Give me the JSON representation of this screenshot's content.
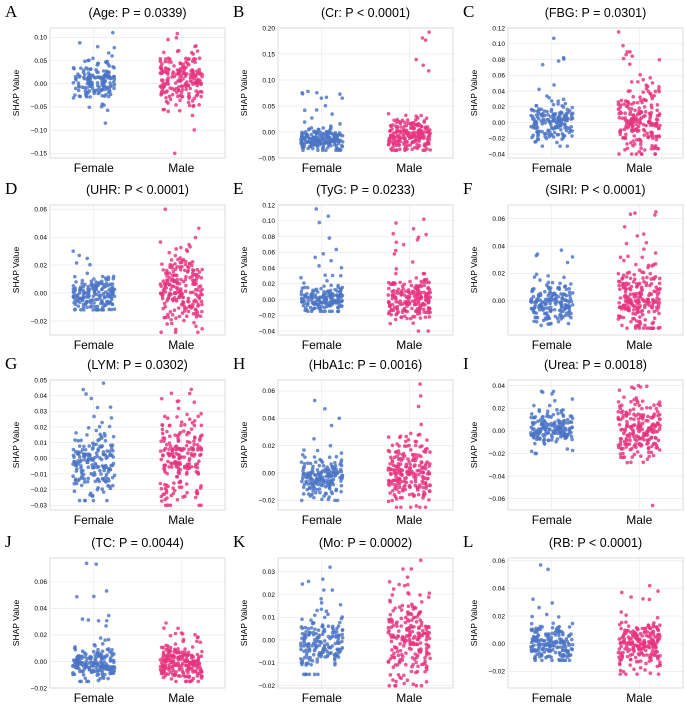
{
  "figure": {
    "colors": {
      "female": "#4a74c4",
      "male": "#e6337f"
    },
    "y_axis_label": "SHAP Value"
  },
  "chart_data": [
    {
      "type": "scatter",
      "letter": "A",
      "title": "(Age: P = 0.0339)",
      "xlabel": "",
      "ylabel": "SHAP Value",
      "categories": [
        "Female",
        "Male"
      ],
      "ylim": [
        -0.16,
        0.12
      ],
      "yticks": [
        0.1,
        0.05,
        0.0,
        -0.05,
        -0.1,
        -0.15
      ],
      "ytick_labels": [
        "0.10",
        "0.05",
        "0.00",
        "−0.05",
        "−0.10",
        "−0.15"
      ],
      "series": [
        {
          "name": "Female",
          "n": 160,
          "center": 0.005,
          "spread": 0.022,
          "min": -0.085,
          "max": 0.11
        },
        {
          "name": "Male",
          "n": 200,
          "center": 0.005,
          "spread": 0.032,
          "min": -0.15,
          "max": 0.108
        }
      ]
    },
    {
      "type": "scatter",
      "letter": "B",
      "title": "(Cr: P < 0.0001)",
      "xlabel": "",
      "ylabel": "SHAP Value",
      "categories": [
        "Female",
        "Male"
      ],
      "ylim": [
        -0.05,
        0.2
      ],
      "yticks": [
        0.2,
        0.15,
        0.1,
        0.05,
        0.0,
        -0.05
      ],
      "ytick_labels": [
        "0.20",
        "0.15",
        "0.10",
        "0.05",
        "0.00",
        "−0.05"
      ],
      "series": [
        {
          "name": "Female",
          "n": 190,
          "center": -0.015,
          "spread": 0.01,
          "min": -0.035,
          "max": 0.078
        },
        {
          "name": "Male",
          "n": 200,
          "center": -0.005,
          "spread": 0.018,
          "min": -0.035,
          "max": 0.192
        }
      ]
    },
    {
      "type": "scatter",
      "letter": "C",
      "title": "(FBG: P = 0.0301)",
      "xlabel": "",
      "ylabel": "SHAP Value",
      "categories": [
        "Female",
        "Male"
      ],
      "ylim": [
        -0.045,
        0.12
      ],
      "yticks": [
        0.12,
        0.1,
        0.08,
        0.06,
        0.04,
        0.02,
        0.0,
        -0.02,
        -0.04
      ],
      "ytick_labels": [
        "0.12",
        "0.10",
        "0.08",
        "0.06",
        "0.04",
        "0.02",
        "0.00",
        "−0.02",
        "−0.04"
      ],
      "series": [
        {
          "name": "Female",
          "n": 180,
          "center": 0.0,
          "spread": 0.013,
          "min": -0.03,
          "max": 0.107
        },
        {
          "name": "Male",
          "n": 210,
          "center": 0.0,
          "spread": 0.022,
          "min": -0.04,
          "max": 0.115
        }
      ]
    },
    {
      "type": "scatter",
      "letter": "D",
      "title": "(UHR: P < 0.0001)",
      "xlabel": "",
      "ylabel": "SHAP Value",
      "categories": [
        "Female",
        "Male"
      ],
      "ylim": [
        -0.03,
        0.063
      ],
      "yticks": [
        0.06,
        0.04,
        0.02,
        0.0,
        -0.02
      ],
      "ytick_labels": [
        "0.06",
        "0.04",
        "0.02",
        "0.00",
        "−0.02"
      ],
      "series": [
        {
          "name": "Female",
          "n": 180,
          "center": -0.002,
          "spread": 0.007,
          "min": -0.012,
          "max": 0.03
        },
        {
          "name": "Male",
          "n": 220,
          "center": 0.002,
          "spread": 0.013,
          "min": -0.028,
          "max": 0.06
        }
      ]
    },
    {
      "type": "scatter",
      "letter": "E",
      "title": "(TyG: P = 0.0233)",
      "xlabel": "",
      "ylabel": "SHAP Value",
      "categories": [
        "Female",
        "Male"
      ],
      "ylim": [
        -0.045,
        0.12
      ],
      "yticks": [
        0.12,
        0.1,
        0.08,
        0.06,
        0.04,
        0.02,
        0.0,
        -0.02,
        -0.04
      ],
      "ytick_labels": [
        "0.12",
        "0.10",
        "0.08",
        "0.06",
        "0.04",
        "0.02",
        "0.00",
        "−0.02",
        "−0.04"
      ],
      "series": [
        {
          "name": "Female",
          "n": 180,
          "center": 0.0,
          "spread": 0.01,
          "min": -0.015,
          "max": 0.115
        },
        {
          "name": "Male",
          "n": 210,
          "center": 0.0,
          "spread": 0.014,
          "min": -0.04,
          "max": 0.102
        }
      ]
    },
    {
      "type": "scatter",
      "letter": "F",
      "title": "(SIRI: P < 0.0001)",
      "xlabel": "",
      "ylabel": "SHAP Value",
      "categories": [
        "Female",
        "Male"
      ],
      "ylim": [
        -0.025,
        0.07
      ],
      "yticks": [
        0.06,
        0.04,
        0.02,
        0.0
      ],
      "ytick_labels": [
        "0.06",
        "0.04",
        "0.02",
        "0.00"
      ],
      "series": [
        {
          "name": "Female",
          "n": 180,
          "center": -0.003,
          "spread": 0.008,
          "min": -0.018,
          "max": 0.037
        },
        {
          "name": "Male",
          "n": 220,
          "center": 0.0,
          "spread": 0.012,
          "min": -0.02,
          "max": 0.065
        }
      ]
    },
    {
      "type": "scatter",
      "letter": "G",
      "title": "(LYM: P = 0.0302)",
      "xlabel": "",
      "ylabel": "SHAP Value",
      "categories": [
        "Female",
        "Male"
      ],
      "ylim": [
        -0.033,
        0.05
      ],
      "yticks": [
        0.05,
        0.04,
        0.03,
        0.02,
        0.01,
        0.0,
        -0.01,
        -0.02,
        -0.03
      ],
      "ytick_labels": [
        "0.05",
        "0.04",
        "0.03",
        "0.02",
        "0.01",
        "0.00",
        "−0.01",
        "−0.02",
        "−0.03"
      ],
      "series": [
        {
          "name": "Female",
          "n": 190,
          "center": -0.002,
          "spread": 0.012,
          "min": -0.027,
          "max": 0.048
        },
        {
          "name": "Male",
          "n": 210,
          "center": 0.0,
          "spread": 0.013,
          "min": -0.03,
          "max": 0.044
        }
      ]
    },
    {
      "type": "scatter",
      "letter": "H",
      "title": "(HbA1c: P = 0.0016)",
      "xlabel": "",
      "ylabel": "SHAP Value",
      "categories": [
        "Female",
        "Male"
      ],
      "ylim": [
        -0.027,
        0.068
      ],
      "yticks": [
        0.06,
        0.04,
        0.02,
        0.0,
        -0.02
      ],
      "ytick_labels": [
        "0.06",
        "0.04",
        "0.02",
        "0.00",
        "−0.02"
      ],
      "series": [
        {
          "name": "Female",
          "n": 180,
          "center": -0.003,
          "spread": 0.008,
          "min": -0.02,
          "max": 0.053
        },
        {
          "name": "Male",
          "n": 220,
          "center": 0.0,
          "spread": 0.013,
          "min": -0.025,
          "max": 0.065
        }
      ]
    },
    {
      "type": "scatter",
      "letter": "I",
      "title": "(Urea: P = 0.0018)",
      "xlabel": "",
      "ylabel": "SHAP Value",
      "categories": [
        "Female",
        "Male"
      ],
      "ylim": [
        -0.07,
        0.045
      ],
      "yticks": [
        0.04,
        0.02,
        0.0,
        -0.02,
        -0.04,
        -0.06
      ],
      "ytick_labels": [
        "0.04",
        "0.02",
        "0.00",
        "−0.02",
        "−0.04",
        "−0.06"
      ],
      "series": [
        {
          "name": "Female",
          "n": 180,
          "center": 0.002,
          "spread": 0.008,
          "min": -0.02,
          "max": 0.035
        },
        {
          "name": "Male",
          "n": 210,
          "center": 0.002,
          "spread": 0.014,
          "min": -0.066,
          "max": 0.04
        }
      ]
    },
    {
      "type": "scatter",
      "letter": "J",
      "title": "(TC: P = 0.0044)",
      "xlabel": "",
      "ylabel": "SHAP Value",
      "categories": [
        "Female",
        "Male"
      ],
      "ylim": [
        -0.02,
        0.078
      ],
      "yticks": [
        0.06,
        0.04,
        0.02,
        0.0,
        -0.02
      ],
      "ytick_labels": [
        "0.06",
        "0.04",
        "0.02",
        "0.00",
        "−0.02"
      ],
      "series": [
        {
          "name": "Female",
          "n": 190,
          "center": -0.001,
          "spread": 0.006,
          "min": -0.015,
          "max": 0.074
        },
        {
          "name": "Male",
          "n": 210,
          "center": -0.001,
          "spread": 0.007,
          "min": -0.015,
          "max": 0.029
        }
      ]
    },
    {
      "type": "scatter",
      "letter": "K",
      "title": "(Mo: P = 0.0002)",
      "xlabel": "",
      "ylabel": "SHAP Value",
      "categories": [
        "Female",
        "Male"
      ],
      "ylim": [
        -0.021,
        0.036
      ],
      "yticks": [
        0.03,
        0.02,
        0.01,
        0.0,
        -0.01,
        -0.02
      ],
      "ytick_labels": [
        "0.03",
        "0.02",
        "0.01",
        "0.00",
        "−0.01",
        "−0.02"
      ],
      "series": [
        {
          "name": "Female",
          "n": 180,
          "center": -0.001,
          "spread": 0.006,
          "min": -0.015,
          "max": 0.032
        },
        {
          "name": "Male",
          "n": 220,
          "center": 0.0,
          "spread": 0.01,
          "min": -0.02,
          "max": 0.035
        }
      ]
    },
    {
      "type": "scatter",
      "letter": "L",
      "title": "(RB: P < 0.0001)",
      "xlabel": "",
      "ylabel": "SHAP Value",
      "categories": [
        "Female",
        "Male"
      ],
      "ylim": [
        -0.032,
        0.062
      ],
      "yticks": [
        0.06,
        0.04,
        0.02,
        0.0,
        -0.02
      ],
      "ytick_labels": [
        "0.06",
        "0.04",
        "0.02",
        "0.00",
        "−0.02"
      ],
      "series": [
        {
          "name": "Female",
          "n": 180,
          "center": 0.0,
          "spread": 0.007,
          "min": -0.012,
          "max": 0.057
        },
        {
          "name": "Male",
          "n": 210,
          "center": -0.001,
          "spread": 0.01,
          "min": -0.022,
          "max": 0.042
        }
      ]
    }
  ]
}
